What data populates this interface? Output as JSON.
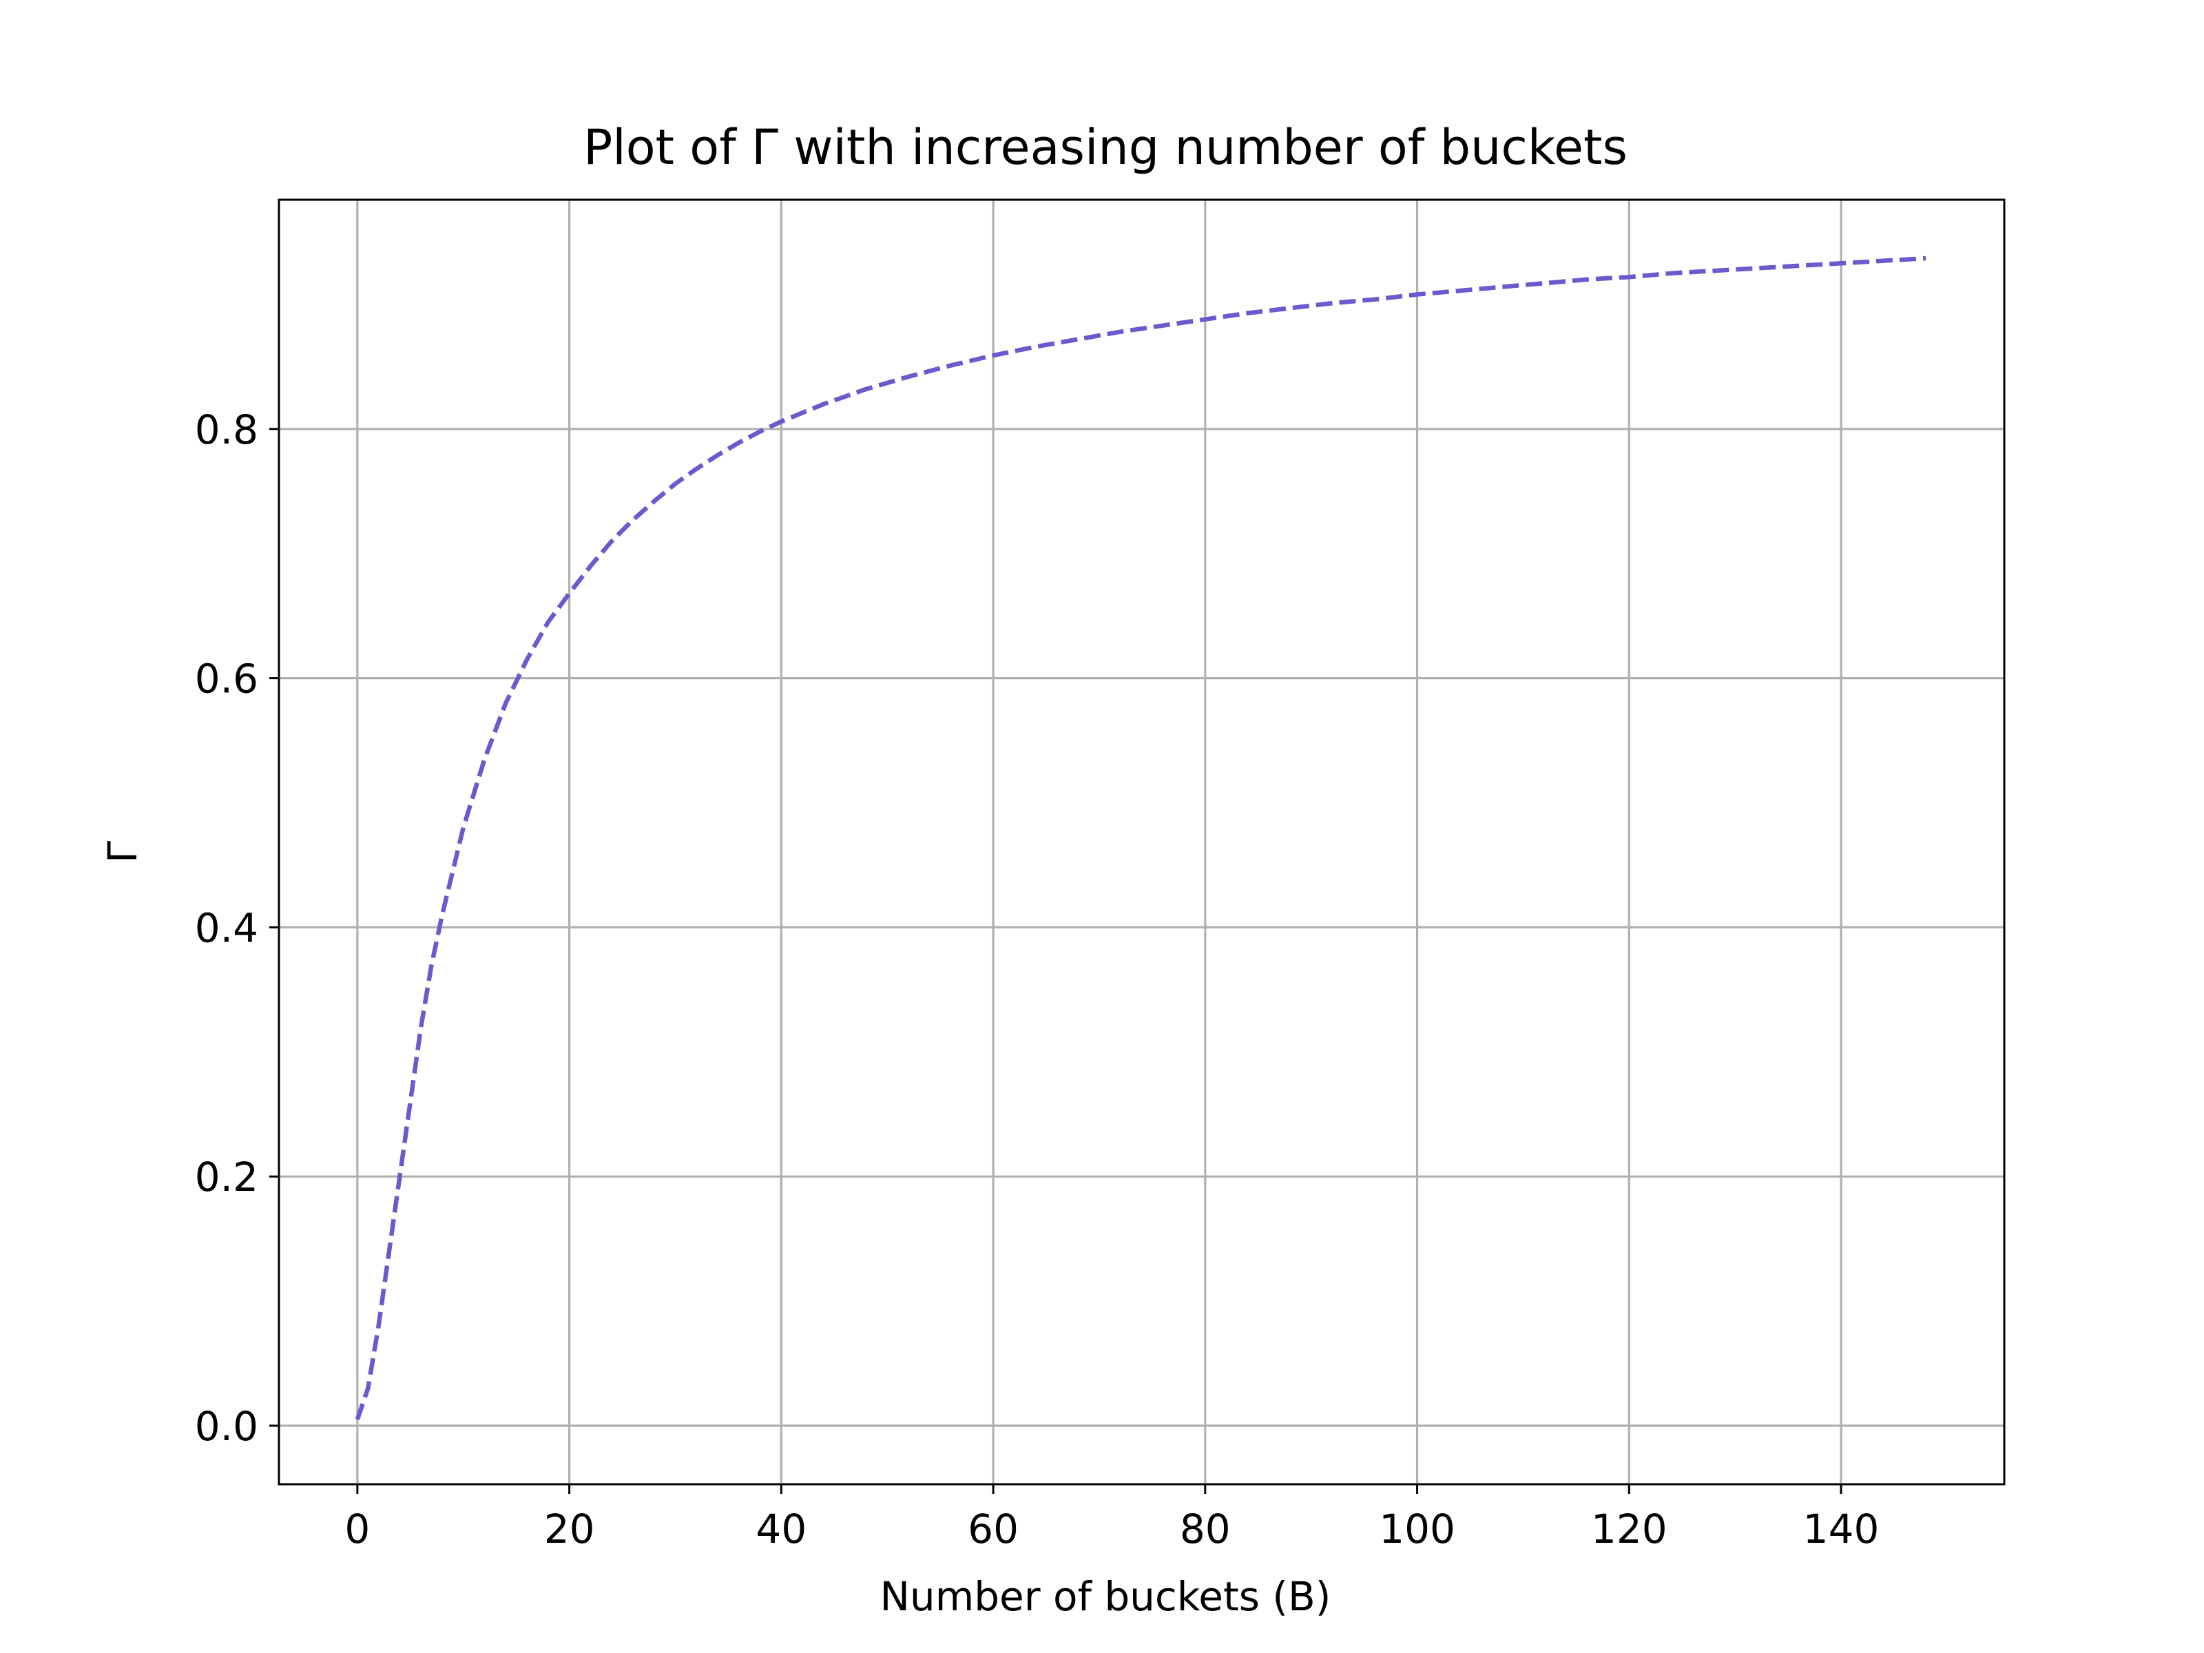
{
  "chart_data": {
    "type": "line",
    "title": "Plot of Γ with increasing number of buckets",
    "xlabel": "Number of buckets (B)",
    "ylabel": "Γ",
    "xlim": [
      -7.4,
      155.4
    ],
    "ylim": [
      -0.047,
      0.984
    ],
    "xticks": [
      0,
      20,
      40,
      60,
      80,
      100,
      120,
      140
    ],
    "xtick_labels": [
      "0",
      "20",
      "40",
      "60",
      "80",
      "100",
      "120",
      "140"
    ],
    "yticks": [
      0.0,
      0.2,
      0.4,
      0.6,
      0.8
    ],
    "ytick_labels": [
      "0.0",
      "0.2",
      "0.4",
      "0.6",
      "0.8"
    ],
    "grid": true,
    "legend": false,
    "series": [
      {
        "color": "#6a5acd",
        "linestyle": "dashed",
        "x": [
          0,
          1,
          2,
          3,
          4,
          5,
          6,
          7,
          8,
          10,
          12,
          14,
          16,
          18,
          20,
          22,
          24,
          26,
          28,
          30,
          32,
          34,
          36,
          38,
          40,
          44,
          48,
          52,
          56,
          60,
          64,
          68,
          72,
          76,
          80,
          84,
          88,
          92,
          96,
          100,
          104,
          108,
          112,
          116,
          120,
          124,
          128,
          132,
          136,
          140,
          144,
          148
        ],
        "y": [
          0.005,
          0.03,
          0.08,
          0.14,
          0.2,
          0.26,
          0.32,
          0.37,
          0.41,
          0.48,
          0.535,
          0.58,
          0.615,
          0.645,
          0.668,
          0.69,
          0.71,
          0.727,
          0.742,
          0.756,
          0.768,
          0.779,
          0.789,
          0.798,
          0.806,
          0.82,
          0.832,
          0.842,
          0.851,
          0.859,
          0.866,
          0.872,
          0.878,
          0.883,
          0.888,
          0.893,
          0.897,
          0.901,
          0.904,
          0.908,
          0.911,
          0.914,
          0.917,
          0.92,
          0.922,
          0.925,
          0.927,
          0.929,
          0.931,
          0.933,
          0.935,
          0.937
        ]
      }
    ]
  }
}
